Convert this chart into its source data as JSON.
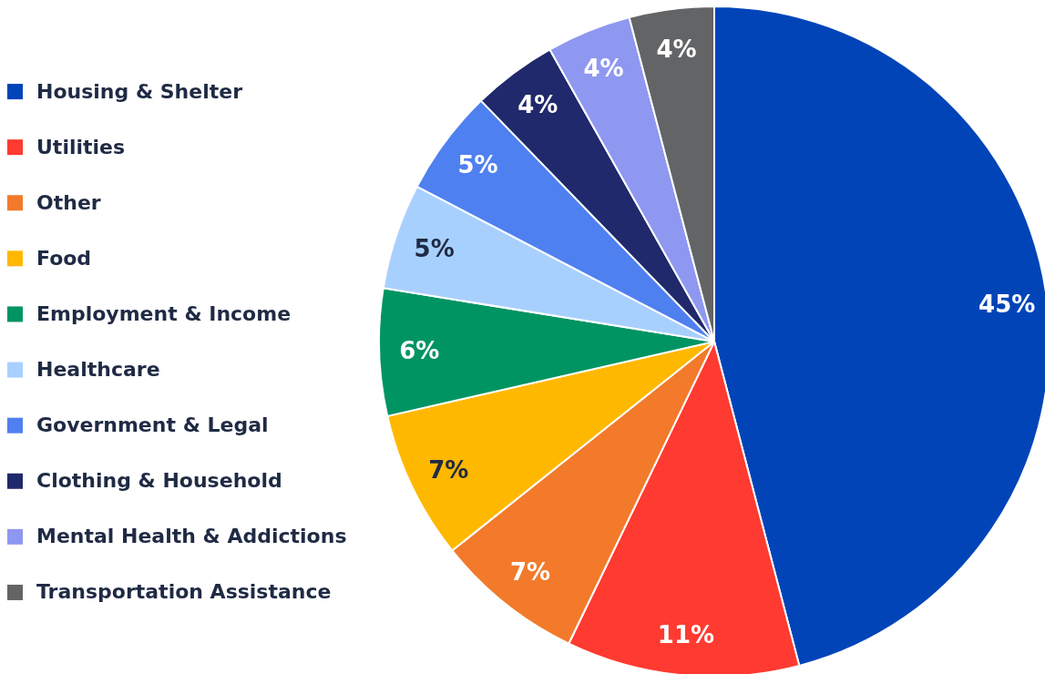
{
  "chart_data": {
    "type": "pie",
    "categories": [
      "Housing & Shelter",
      "Utilities",
      "Other",
      "Food",
      "Employment & Income",
      "Healthcare",
      "Government & Legal",
      "Clothing & Household",
      "Mental Health & Addictions",
      "Transportation Assistance"
    ],
    "values": [
      45,
      11,
      7,
      7,
      6,
      5,
      5,
      4,
      4,
      4
    ],
    "value_labels": [
      "45%",
      "11%",
      "7%",
      "7%",
      "6%",
      "5%",
      "5%",
      "4%",
      "4%",
      "4%"
    ],
    "colors": [
      "#0044b8",
      "#ff3a30",
      "#f27a2a",
      "#ffb800",
      "#009463",
      "#a8d0ff",
      "#4f80f0",
      "#1f296b",
      "#8f98f0",
      "#636466"
    ],
    "legend": "left"
  }
}
